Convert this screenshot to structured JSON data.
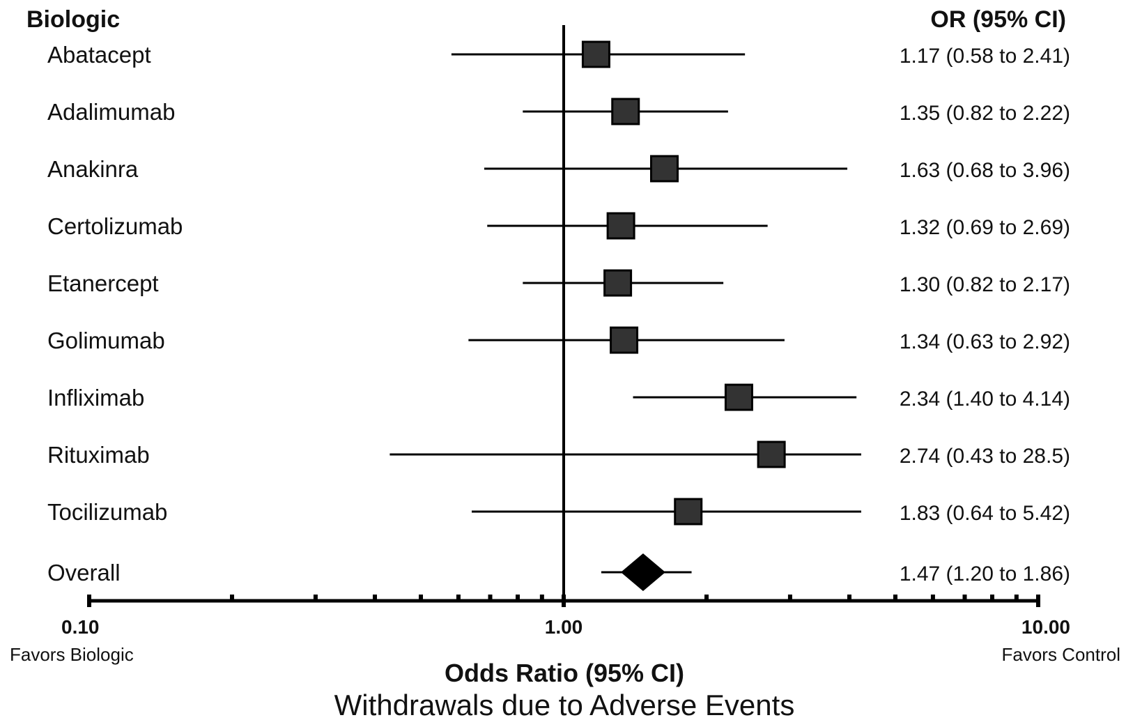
{
  "chart_data": {
    "type": "forest",
    "x_scale": "log",
    "xlim": [
      0.1,
      10.0
    ],
    "reference_line": 1.0,
    "headers": {
      "label": "Biologic",
      "stat": "OR (95% CI)"
    },
    "rows": [
      {
        "label": "Abatacept",
        "or": 1.17,
        "lo": 0.58,
        "hi": 2.41,
        "text": "1.17 (0.58 to 2.41)",
        "marker": "square"
      },
      {
        "label": "Adalimumab",
        "or": 1.35,
        "lo": 0.82,
        "hi": 2.22,
        "text": "1.35 (0.82 to 2.22)",
        "marker": "square"
      },
      {
        "label": "Anakinra",
        "or": 1.63,
        "lo": 0.68,
        "hi": 3.96,
        "text": "1.63 (0.68 to 3.96)",
        "marker": "square"
      },
      {
        "label": "Certolizumab",
        "or": 1.32,
        "lo": 0.69,
        "hi": 2.69,
        "text": "1.32 (0.69 to 2.69)",
        "marker": "square"
      },
      {
        "label": "Etanercept",
        "or": 1.3,
        "lo": 0.82,
        "hi": 2.17,
        "text": "1.30 (0.82 to 2.17)",
        "marker": "square"
      },
      {
        "label": "Golimumab",
        "or": 1.34,
        "lo": 0.63,
        "hi": 2.92,
        "text": "1.34 (0.63 to 2.92)",
        "marker": "square"
      },
      {
        "label": "Infliximab",
        "or": 2.34,
        "lo": 1.4,
        "hi": 4.14,
        "text": "2.34 (1.40 to 4.14)",
        "marker": "square"
      },
      {
        "label": "Rituximab",
        "or": 2.74,
        "lo": 0.43,
        "hi": 28.5,
        "text": "2.74 (0.43 to 28.5)",
        "marker": "square"
      },
      {
        "label": "Tocilizumab",
        "or": 1.83,
        "lo": 0.64,
        "hi": 5.42,
        "text": "1.83 (0.64 to 5.42)",
        "marker": "square"
      },
      {
        "label": "Overall",
        "or": 1.47,
        "lo": 1.2,
        "hi": 1.86,
        "text": "1.47 (1.20 to 1.86)",
        "marker": "diamond"
      }
    ],
    "x_ticks": [
      {
        "value": 0.1,
        "label": "0.10"
      },
      {
        "value": 1.0,
        "label": "1.00"
      },
      {
        "value": 10.0,
        "label": "10.00"
      }
    ],
    "x_minor_ticks": [
      0.2,
      0.3,
      0.4,
      0.5,
      0.6,
      0.7,
      0.8,
      0.9,
      2,
      3,
      4,
      5,
      6,
      7,
      8,
      9
    ],
    "favors_left": "Favors Biologic",
    "favors_right": "Favors Control",
    "xlabel": "Odds Ratio (95% CI)",
    "title": "Withdrawals due to Adverse Events",
    "colors": {
      "marker_fill": "#333333",
      "line": "#000000"
    }
  }
}
